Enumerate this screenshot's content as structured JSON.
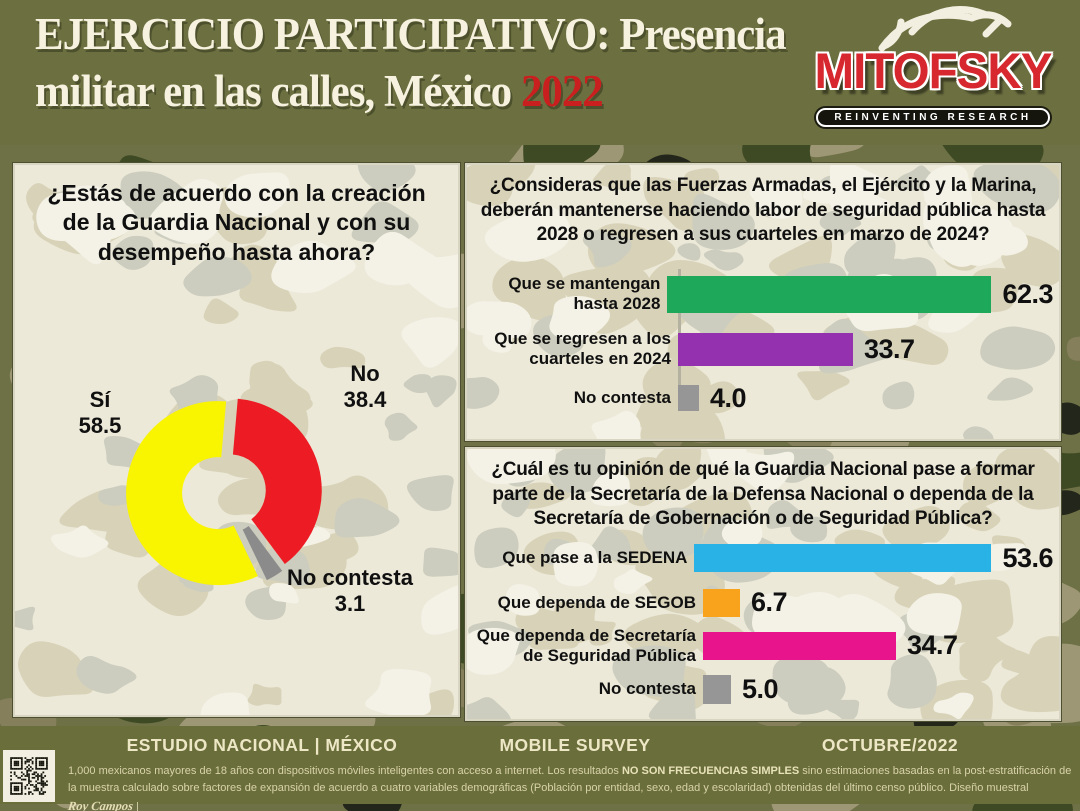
{
  "header": {
    "title_line1": "EJERCICIO PARTICIPATIVO: Presencia",
    "title_line2_prefix": "militar en las calles, México ",
    "title_year": "2022",
    "title_year_color": "#c9201f",
    "band_color": "#6c7040",
    "logo": {
      "name": "MITOFSKY",
      "tagline": "REINVENTING RESEARCH",
      "brand_color": "#d7282f",
      "bird_icon": "bird-sketch-icon"
    }
  },
  "chart_data": [
    {
      "id": "guardia_nacional_donut",
      "type": "donut",
      "question": "¿Estás de acuerdo con la creación\nde la Guardia Nacional y con su\ndesempeño hasta ahora?",
      "slices": [
        {
          "label": "Sí",
          "value": 58.5,
          "color": "#f9f400"
        },
        {
          "label": "No",
          "value": 38.4,
          "color": "#ed1c24"
        },
        {
          "label": "No contesta",
          "value": 3.1,
          "color": "#8b8b8b"
        }
      ]
    },
    {
      "id": "fuerzas_armadas_2028_bars",
      "type": "bar",
      "question": "¿Consideras que las Fuerzas Armadas, el Ejército y la Marina,\ndeberán mantenerse haciendo labor de seguridad pública hasta\n2028 o regresen a sus cuarteles en marzo de 2024?",
      "categories": [
        "Que se mantengan\nhasta 2028",
        "Que se regresen a los\ncuarteles en 2024",
        "No contesta"
      ],
      "values": [
        62.3,
        33.7,
        4.0
      ],
      "colors": [
        "#1ea85a",
        "#9331af",
        "#969696"
      ],
      "xlim": [
        0,
        70
      ]
    },
    {
      "id": "guardia_nacional_sedena_bars",
      "type": "bar",
      "question": "¿Cuál es tu opinión de qué la Guardia Nacional pase a formar\nparte de la Secretaría de la Defensa Nacional o dependa de la\nSecretaría de Gobernación o de Seguridad Pública?",
      "categories": [
        "Que pase a la SEDENA",
        "Que dependa de SEGOB",
        "Que dependa de Secretaría\nde Seguridad Pública",
        "No contesta"
      ],
      "values": [
        53.6,
        6.7,
        34.7,
        5.0
      ],
      "colors": [
        "#29b2e6",
        "#f9a21b",
        "#e8148c",
        "#969696"
      ],
      "xlim": [
        0,
        65
      ]
    }
  ],
  "footer": {
    "study_label": "ESTUDIO NACIONAL | MÉXICO",
    "survey_label": "MOBILE SURVEY",
    "date_label": "OCTUBRE/2022",
    "band_color": "#6a6e3a",
    "qr_icon": "qr-code-icon",
    "fineprint_a": "1,000 mexicanos mayores de 18 años con dispositivos móviles inteligentes con acceso a internet. Los resultados ",
    "fineprint_bold": "NO SON FRECUENCIAS SIMPLES",
    "fineprint_b": " sino estimaciones basadas en la post-estratificación de la muestra calculado sobre factores de expansión de acuerdo a cuatro variables demográficas (Población por entidad, sexo, edad y escolaridad) obtenidas del último censo público. Diseño muestral ",
    "signature": "Roy Campos",
    "fineprint_end": " |"
  }
}
